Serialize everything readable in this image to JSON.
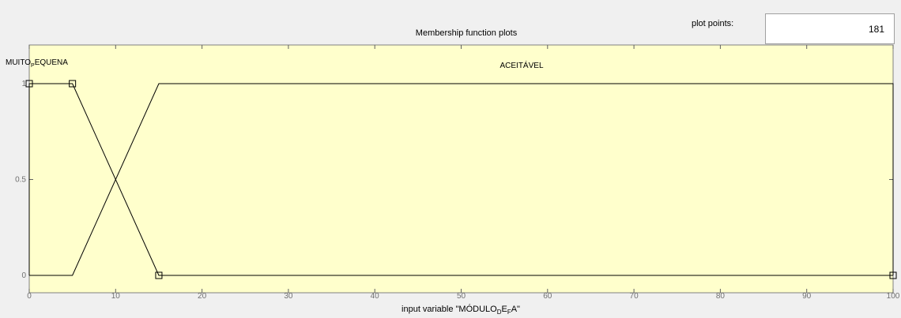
{
  "window": {
    "title": "Membership function plots"
  },
  "plot_points": {
    "label": "plot points:",
    "value": "181"
  },
  "axis": {
    "x_label_prefix": "input variable \"MÓDULO",
    "x_label_sub1": "D",
    "x_label_mid": "E",
    "x_label_sub2": "F",
    "x_label_suffix": "A\""
  },
  "mf_labels": {
    "mf1_prefix": "MUITO",
    "mf1_sub": "P",
    "mf1_suffix": "EQUENA",
    "mf2": "ACEITÁVEL"
  },
  "colors": {
    "plot_bg": "#ffffcc",
    "window_bg": "#f0f0f0",
    "line": "#000000"
  },
  "chart_data": {
    "type": "line",
    "title": "Membership function plots",
    "xlabel": "input variable \"MÓDULO_D_E_F_A\"",
    "ylabel": "",
    "xlim": [
      0,
      100
    ],
    "ylim": [
      0,
      1
    ],
    "x_ticks": [
      0,
      10,
      20,
      30,
      40,
      50,
      60,
      70,
      80,
      90,
      100
    ],
    "y_ticks": [
      0,
      0.5,
      1
    ],
    "x_tick_labels": [
      "0",
      "10",
      "20",
      "30",
      "40",
      "50",
      "60",
      "70",
      "80",
      "90",
      "100"
    ],
    "y_tick_labels": [
      "0",
      "0.5",
      "1"
    ],
    "series": [
      {
        "name": "MUITO_P_EQUENA",
        "x": [
          0,
          0,
          5,
          15,
          100
        ],
        "y": [
          0,
          1,
          1,
          0,
          0
        ],
        "selected": true
      },
      {
        "name": "ACEITÁVEL",
        "x": [
          0,
          5,
          15,
          100,
          100
        ],
        "y": [
          0,
          0,
          1,
          1,
          0
        ],
        "selected": false
      }
    ]
  }
}
